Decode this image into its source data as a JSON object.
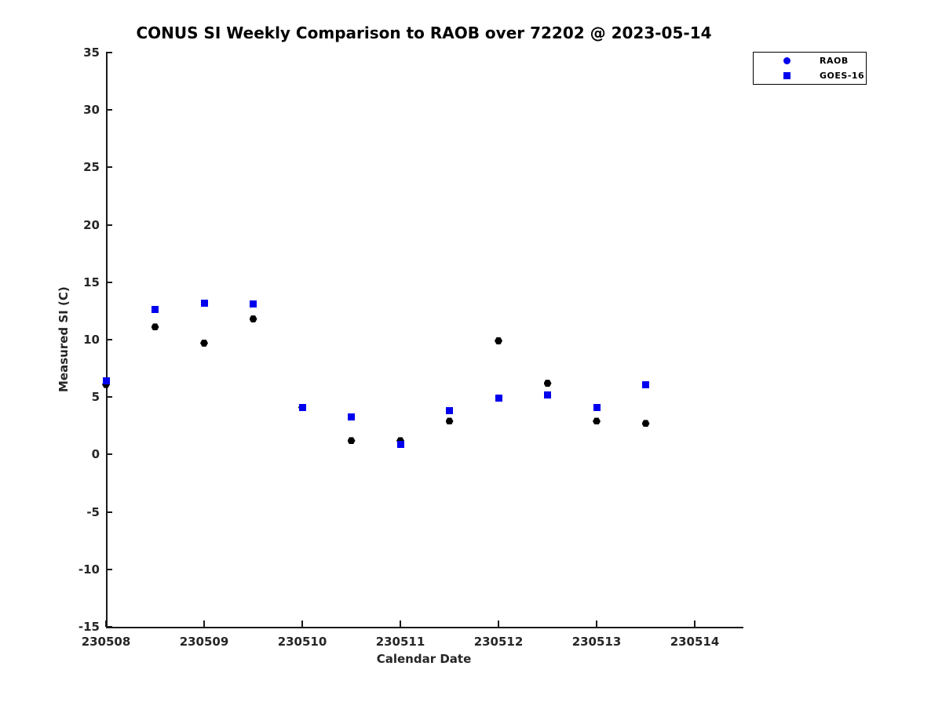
{
  "chart_data": {
    "type": "scatter",
    "title": "CONUS SI Weekly Comparison to RAOB over 72202 @ 2023-05-14",
    "xlabel": "Calendar Date",
    "ylabel": "Measured SI (C)",
    "xlim": [
      230508,
      230514.48
    ],
    "ylim": [
      -15,
      35
    ],
    "x_tick_labels": [
      "230508",
      "230509",
      "230510",
      "230511",
      "230512",
      "230513",
      "230514"
    ],
    "x_tick_values": [
      230508,
      230509,
      230510,
      230511,
      230512,
      230513,
      230514
    ],
    "y_ticks": [
      35,
      30,
      25,
      20,
      15,
      10,
      5,
      0,
      -5,
      -10,
      -15
    ],
    "grid": false,
    "legend_position": "top-right",
    "axis_color": "#1a1a1a",
    "series": [
      {
        "name": "RAOB",
        "marker": "hexagon",
        "color": "#000000",
        "legend_marker": "circle",
        "legend_color": "#0000ee",
        "x": [
          230508,
          230508.5,
          230509,
          230509.5,
          230510,
          230510.5,
          230511,
          230511.5,
          230512,
          230512.5,
          230513,
          230513.5
        ],
        "y": [
          6.1,
          11.1,
          9.7,
          11.8,
          4.1,
          1.2,
          1.2,
          2.9,
          9.9,
          6.2,
          2.9,
          2.7
        ]
      },
      {
        "name": "GOES-16",
        "marker": "square",
        "color": "#0000ee",
        "legend_marker": "square",
        "legend_color": "#0000ee",
        "x": [
          230508,
          230508.5,
          230509,
          230509.5,
          230510,
          230510.5,
          230511,
          230511.5,
          230512,
          230512.5,
          230513,
          230513.5
        ],
        "y": [
          6.4,
          12.6,
          13.2,
          13.1,
          4.1,
          3.3,
          0.9,
          3.8,
          4.9,
          5.2,
          4.1,
          6.1
        ]
      }
    ]
  }
}
